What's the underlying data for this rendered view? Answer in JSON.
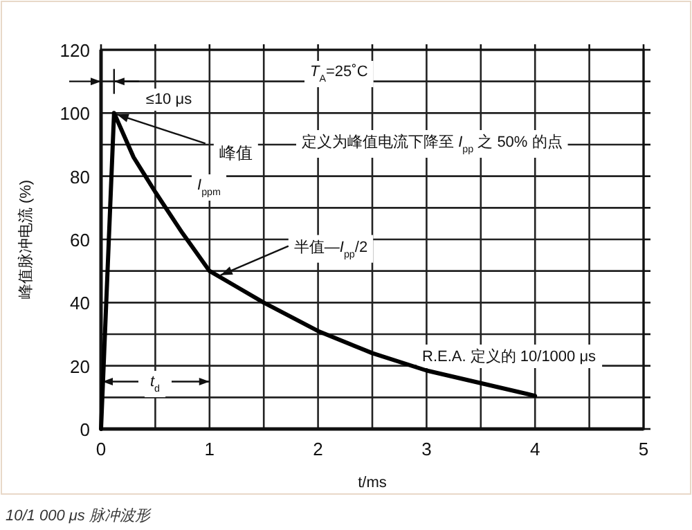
{
  "chart_data": {
    "type": "line",
    "xlabel": "t/ms",
    "ylabel": "峰值脉冲电流 (%)",
    "xlim": [
      0,
      5
    ],
    "ylim": [
      0,
      120
    ],
    "xticks": [
      0,
      {
        "value": 0.5,
        "label": null
      },
      1,
      {
        "value": 1.5,
        "label": null
      },
      2,
      {
        "value": 2.5,
        "label": null
      },
      3,
      {
        "value": 3.5,
        "label": null
      },
      4,
      {
        "value": 4.5,
        "label": null
      },
      5
    ],
    "yticks": [
      0,
      {
        "value": 10,
        "label": null
      },
      20,
      {
        "value": 30,
        "label": null
      },
      40,
      {
        "value": 50,
        "label": null
      },
      60,
      {
        "value": 70,
        "label": null
      },
      80,
      {
        "value": 90,
        "label": null
      },
      100,
      {
        "value": 110,
        "label": null
      },
      120
    ],
    "grid": true,
    "marker": "none",
    "line_style": "solid",
    "series": [
      {
        "color": "#000000",
        "x": [
          0,
          0.12,
          0.3,
          0.5,
          0.75,
          1,
          1.25,
          1.5,
          2,
          2.5,
          3,
          3.5,
          4
        ],
        "values": [
          0,
          100,
          86,
          75,
          62,
          50,
          45,
          40,
          31,
          24,
          18.5,
          14.5,
          10.5
        ]
      }
    ],
    "annotations": [
      "≤10 μs",
      "*T*$_{A}$=25˚C",
      {
        "text": "峰值",
        "x": 0.12,
        "y": 100
      },
      "*I*$_{ppm}$",
      "定义为峰值电流下降至 *I*$_{pp}$ 之 50% 的点",
      {
        "text": "半值—*I*$_{pp}$/2",
        "x": 1,
        "y": 50
      },
      "R.E.A. 定义的 10/1000 μs",
      "*t*$_{d}$",
      "10/1 000 μs 脉冲波形"
    ]
  }
}
